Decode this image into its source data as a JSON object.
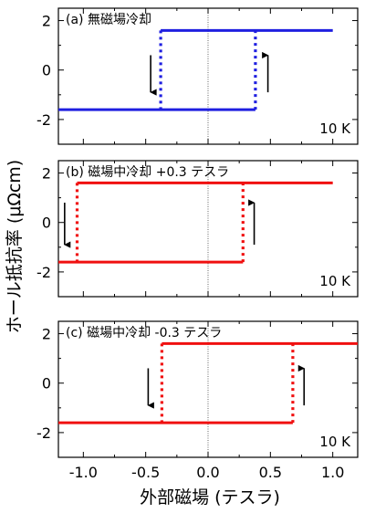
{
  "figure": {
    "ylabel": "ホール抵抗率 (μΩcm)",
    "xlabel": "外部磁場 (テスラ)"
  },
  "chart_data": [
    {
      "type": "line",
      "panel_label": "(a) 無磁場冷却",
      "temperature_label": "10 K",
      "color": "#1f1fe0",
      "xlim": [
        -1.2,
        1.2
      ],
      "ylim": [
        -3,
        2.5
      ],
      "yticks": [
        -2,
        0,
        2
      ],
      "xticks": [
        -1.0,
        -0.5,
        0.0,
        0.5,
        1.0
      ],
      "xtick_labels": [
        "-1.0",
        "-0.5",
        "0.0",
        "0.5",
        "1.0"
      ],
      "show_xtick_labels": false,
      "series": [
        {
          "x": [
            -1.2,
            0.38
          ],
          "y": [
            -1.6,
            -1.6
          ],
          "style": "solid"
        },
        {
          "x": [
            0.38,
            0.38
          ],
          "y": [
            -1.6,
            1.6
          ],
          "style": "dotted"
        },
        {
          "x": [
            -0.38,
            1.0
          ],
          "y": [
            1.6,
            1.6
          ],
          "style": "solid"
        },
        {
          "x": [
            -0.38,
            -0.38
          ],
          "y": [
            1.6,
            -1.6
          ],
          "style": "dotted"
        }
      ],
      "arrows": [
        {
          "direction": "down",
          "x": -0.46,
          "y_from": 0.6,
          "y_to": -0.9
        },
        {
          "direction": "up",
          "x": 0.48,
          "y_from": -0.9,
          "y_to": 0.6
        }
      ]
    },
    {
      "type": "line",
      "panel_label": "(b) 磁場中冷却 +0.3 テスラ",
      "temperature_label": "10 K",
      "color": "#f01010",
      "xlim": [
        -1.2,
        1.2
      ],
      "ylim": [
        -3,
        2.5
      ],
      "yticks": [
        -2,
        0,
        2
      ],
      "xticks": [
        -1.0,
        -0.5,
        0.0,
        0.5,
        1.0
      ],
      "xtick_labels": [
        "-1.0",
        "-0.5",
        "0.0",
        "0.5",
        "1.0"
      ],
      "show_xtick_labels": false,
      "series": [
        {
          "x": [
            -1.2,
            0.28
          ],
          "y": [
            -1.6,
            -1.6
          ],
          "style": "solid"
        },
        {
          "x": [
            0.28,
            0.28
          ],
          "y": [
            -1.6,
            1.6
          ],
          "style": "dotted"
        },
        {
          "x": [
            -1.05,
            1.0
          ],
          "y": [
            1.6,
            1.6
          ],
          "style": "solid"
        },
        {
          "x": [
            -1.05,
            -1.05
          ],
          "y": [
            1.6,
            -1.6
          ],
          "style": "dotted"
        }
      ],
      "arrows": [
        {
          "direction": "down",
          "x": -1.15,
          "y_from": 0.8,
          "y_to": -0.9
        },
        {
          "direction": "up",
          "x": 0.37,
          "y_from": -0.9,
          "y_to": 0.8
        }
      ]
    },
    {
      "type": "line",
      "panel_label": "(c) 磁場中冷却 -0.3 テスラ",
      "temperature_label": "10 K",
      "color": "#f01010",
      "xlim": [
        -1.2,
        1.2
      ],
      "ylim": [
        -3,
        2.5
      ],
      "yticks": [
        -2,
        0,
        2
      ],
      "xticks": [
        -1.0,
        -0.5,
        0.0,
        0.5,
        1.0
      ],
      "xtick_labels": [
        "-1.0",
        "-0.5",
        "0.0",
        "0.5",
        "1.0"
      ],
      "show_xtick_labels": true,
      "series": [
        {
          "x": [
            -1.2,
            0.68
          ],
          "y": [
            -1.6,
            -1.6
          ],
          "style": "solid"
        },
        {
          "x": [
            0.68,
            0.68
          ],
          "y": [
            -1.6,
            1.6
          ],
          "style": "dotted"
        },
        {
          "x": [
            -0.37,
            1.2
          ],
          "y": [
            1.6,
            1.6
          ],
          "style": "solid"
        },
        {
          "x": [
            -0.37,
            -0.37
          ],
          "y": [
            1.6,
            -1.6
          ],
          "style": "dotted"
        }
      ],
      "arrows": [
        {
          "direction": "down",
          "x": -0.48,
          "y_from": 0.6,
          "y_to": -0.9
        },
        {
          "direction": "up",
          "x": 0.77,
          "y_from": -0.9,
          "y_to": 0.6
        }
      ]
    }
  ]
}
